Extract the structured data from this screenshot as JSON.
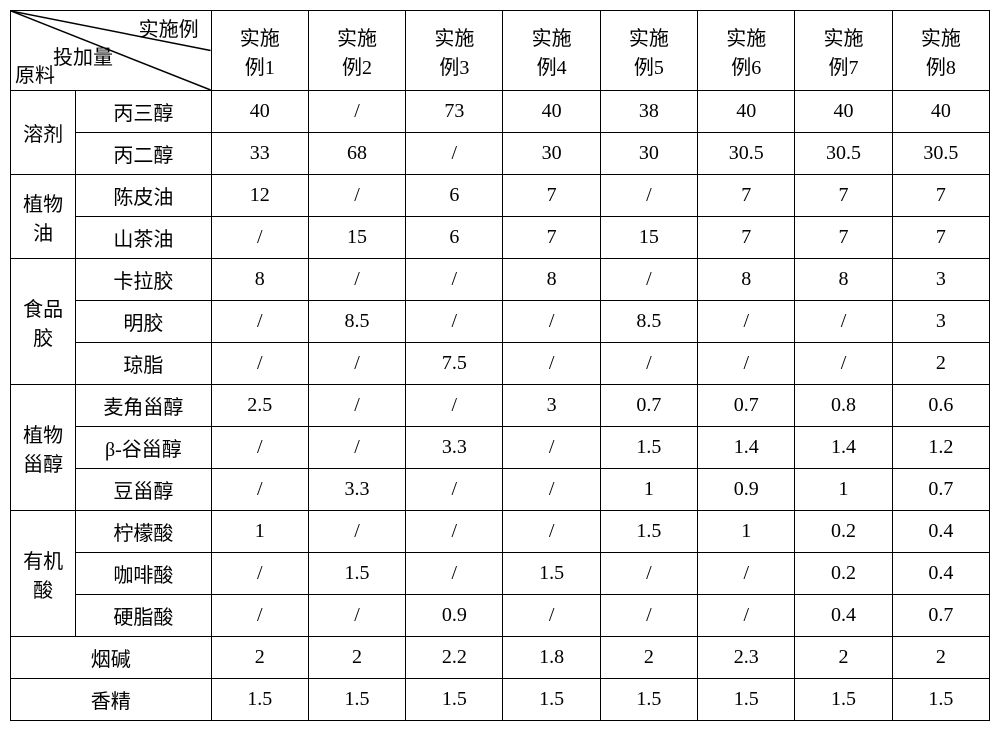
{
  "header": {
    "diagTop": "实施例",
    "diagMid": "投加量",
    "diagBot": "原料",
    "cols": [
      "实施例1",
      "实施例2",
      "实施例3",
      "实施例4",
      "实施例5",
      "实施例6",
      "实施例7",
      "实施例8"
    ]
  },
  "groups": [
    {
      "label": "溶剂",
      "rows": [
        {
          "name": "丙三醇",
          "vals": [
            "40",
            "/",
            "73",
            "40",
            "38",
            "40",
            "40",
            "40"
          ]
        },
        {
          "name": "丙二醇",
          "vals": [
            "33",
            "68",
            "/",
            "30",
            "30",
            "30.5",
            "30.5",
            "30.5"
          ]
        }
      ]
    },
    {
      "label": "植物油",
      "rows": [
        {
          "name": "陈皮油",
          "vals": [
            "12",
            "/",
            "6",
            "7",
            "/",
            "7",
            "7",
            "7"
          ]
        },
        {
          "name": "山茶油",
          "vals": [
            "/",
            "15",
            "6",
            "7",
            "15",
            "7",
            "7",
            "7"
          ]
        }
      ]
    },
    {
      "label": "食品胶",
      "rows": [
        {
          "name": "卡拉胶",
          "vals": [
            "8",
            "/",
            "/",
            "8",
            "/",
            "8",
            "8",
            "3"
          ]
        },
        {
          "name": "明胶",
          "vals": [
            "/",
            "8.5",
            "/",
            "/",
            "8.5",
            "/",
            "/",
            "3"
          ]
        },
        {
          "name": "琼脂",
          "vals": [
            "/",
            "/",
            "7.5",
            "/",
            "/",
            "/",
            "/",
            "2"
          ]
        }
      ]
    },
    {
      "label": "植物甾醇",
      "rows": [
        {
          "name": "麦角甾醇",
          "vals": [
            "2.5",
            "/",
            "/",
            "3",
            "0.7",
            "0.7",
            "0.8",
            "0.6"
          ]
        },
        {
          "name": "β-谷甾醇",
          "vals": [
            "/",
            "/",
            "3.3",
            "/",
            "1.5",
            "1.4",
            "1.4",
            "1.2"
          ]
        },
        {
          "name": "豆甾醇",
          "vals": [
            "/",
            "3.3",
            "/",
            "/",
            "1",
            "0.9",
            "1",
            "0.7"
          ]
        }
      ]
    },
    {
      "label": "有机酸",
      "rows": [
        {
          "name": "柠檬酸",
          "vals": [
            "1",
            "/",
            "/",
            "/",
            "1.5",
            "1",
            "0.2",
            "0.4"
          ]
        },
        {
          "name": "咖啡酸",
          "vals": [
            "/",
            "1.5",
            "/",
            "1.5",
            "/",
            "/",
            "0.2",
            "0.4"
          ]
        },
        {
          "name": "硬脂酸",
          "vals": [
            "/",
            "/",
            "0.9",
            "/",
            "/",
            "/",
            "0.4",
            "0.7"
          ]
        }
      ]
    }
  ],
  "singles": [
    {
      "name": "烟碱",
      "vals": [
        "2",
        "2",
        "2.2",
        "1.8",
        "2",
        "2.3",
        "2",
        "2"
      ]
    },
    {
      "name": "香精",
      "vals": [
        "1.5",
        "1.5",
        "1.5",
        "1.5",
        "1.5",
        "1.5",
        "1.5",
        "1.5"
      ]
    }
  ]
}
